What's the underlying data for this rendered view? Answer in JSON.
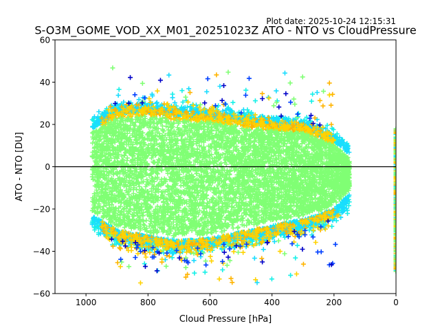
{
  "plot_date": "Plot date: 2025-10-24 12:15:31",
  "chart_data": {
    "type": "scatter",
    "title": "S-O3M_GOME_VOD_XX_M01_20251023Z ATO - NTO vs CloudPressure",
    "xlabel": "Cloud Pressure [hPa]",
    "ylabel": "ATO - NTO [DU]",
    "xlim": [
      1100,
      0
    ],
    "ylim": [
      -60,
      60
    ],
    "xticks": [
      1000,
      800,
      600,
      400,
      200,
      0
    ],
    "yticks": [
      -60,
      -40,
      -20,
      0,
      20,
      40,
      60
    ],
    "xtick_labels": [
      "1000",
      "800",
      "600",
      "400",
      "200",
      "0"
    ],
    "ytick_labels": [
      "−60",
      "−40",
      "−20",
      "0",
      "20",
      "40",
      "60"
    ],
    "reference_line_y": 0,
    "marker": "+",
    "colors": {
      "dominant": "#80ff74",
      "cyan": "#16f0e8",
      "aqua": "#1adcff",
      "yellow": "#ffd200",
      "orange": "#ffb400",
      "blue": "#0040ff",
      "navy": "#0000c8",
      "line": "#000000"
    },
    "distribution": {
      "main_cloud_x_range": [
        980,
        150
      ],
      "core_y_range": [
        -25,
        20
      ],
      "upper_envelope": [
        [
          980,
          20
        ],
        [
          900,
          27
        ],
        [
          800,
          28
        ],
        [
          700,
          26
        ],
        [
          600,
          25
        ],
        [
          500,
          23
        ],
        [
          400,
          21
        ],
        [
          300,
          20
        ],
        [
          250,
          17
        ],
        [
          200,
          14
        ],
        [
          150,
          8
        ]
      ],
      "lower_envelope": [
        [
          980,
          -25
        ],
        [
          900,
          -32
        ],
        [
          800,
          -35
        ],
        [
          700,
          -37
        ],
        [
          600,
          -36
        ],
        [
          500,
          -33
        ],
        [
          400,
          -30
        ],
        [
          300,
          -27
        ],
        [
          250,
          -25
        ],
        [
          200,
          -22
        ],
        [
          150,
          -15
        ]
      ],
      "outliers_y_range": [
        -57,
        51
      ],
      "edge_column_x": 0,
      "edge_column_y_range": [
        -50,
        18
      ]
    }
  }
}
